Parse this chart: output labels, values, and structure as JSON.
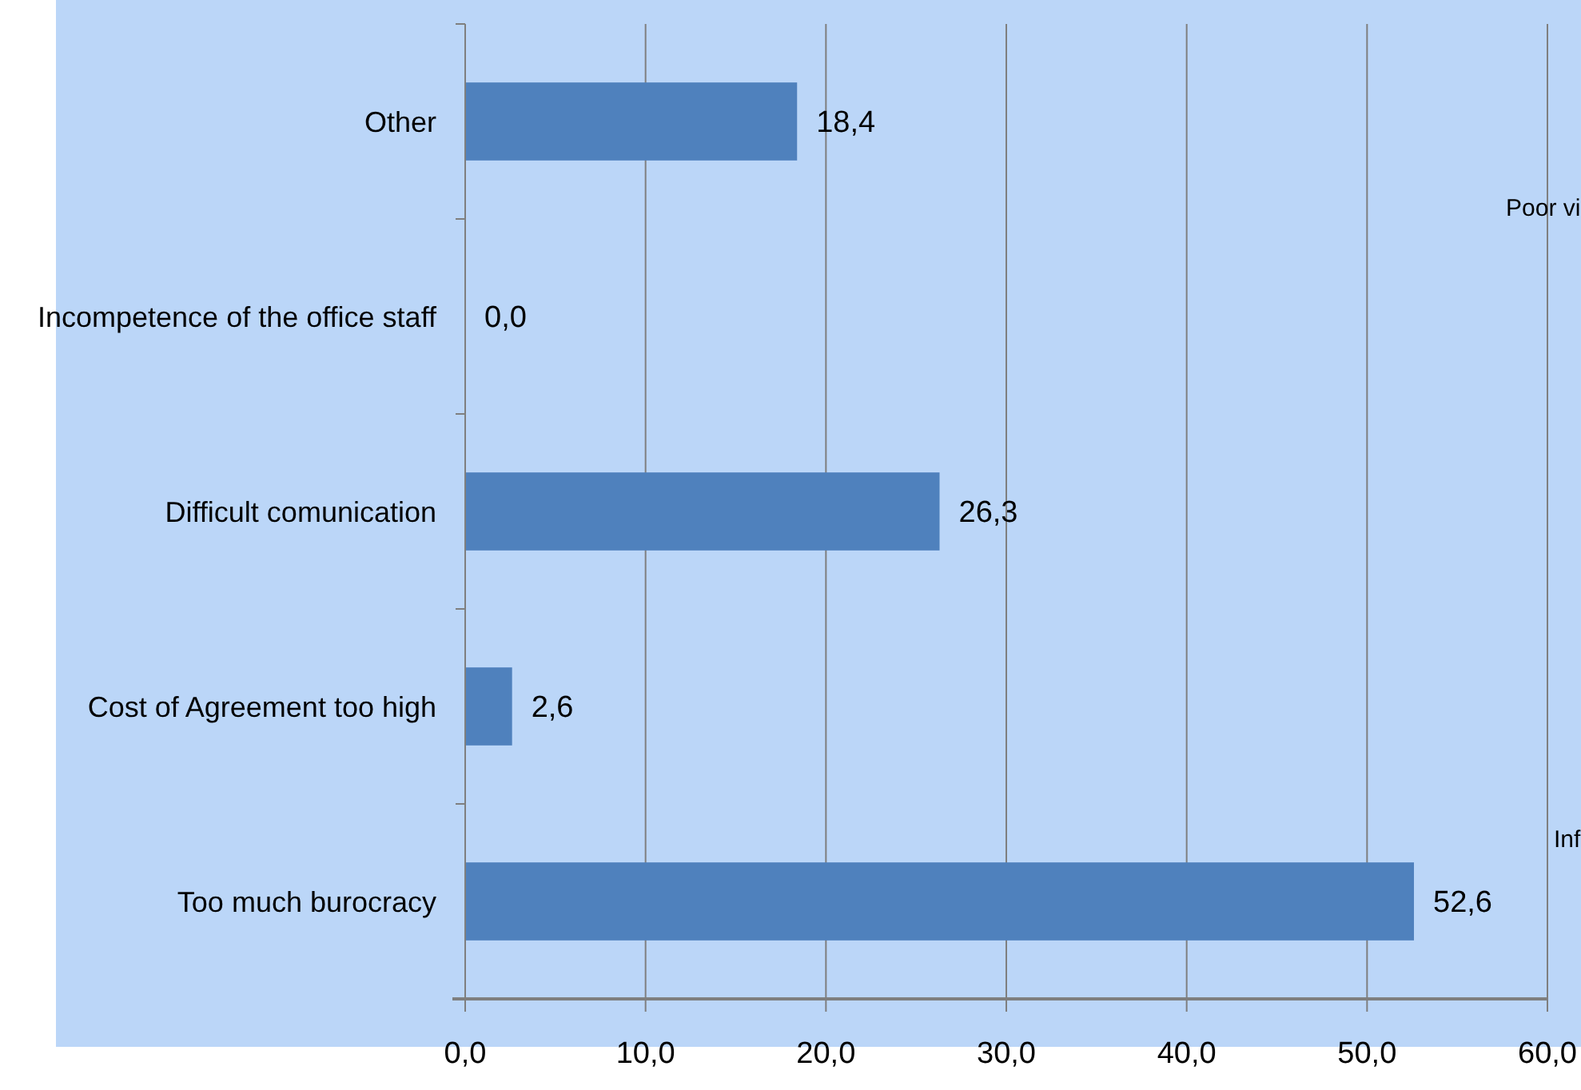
{
  "chart_data": {
    "type": "bar",
    "orientation": "horizontal",
    "categories": [
      "Other",
      "Incompetence of the office staff",
      "Difficult comunication",
      "Cost of Agreement too high",
      "Too much burocracy"
    ],
    "values": [
      18.4,
      0.0,
      26.3,
      2.6,
      52.6
    ],
    "value_labels": [
      "18,4",
      "0,0",
      "26,3",
      "2,6",
      "52,6"
    ],
    "color": "#4f81bd",
    "xlim": [
      0,
      60
    ],
    "xticks": [
      {
        "value": 0,
        "label": "0,0"
      },
      {
        "value": 10,
        "label": "10,0"
      },
      {
        "value": 20,
        "label": "20,0"
      },
      {
        "value": 30,
        "label": "30,0"
      },
      {
        "value": 40,
        "label": "40,0"
      },
      {
        "value": 50,
        "label": "50,0"
      },
      {
        "value": 60,
        "label": "60,0"
      }
    ],
    "grid": "x",
    "annotations": [
      "Poor vi",
      "Inf"
    ]
  }
}
